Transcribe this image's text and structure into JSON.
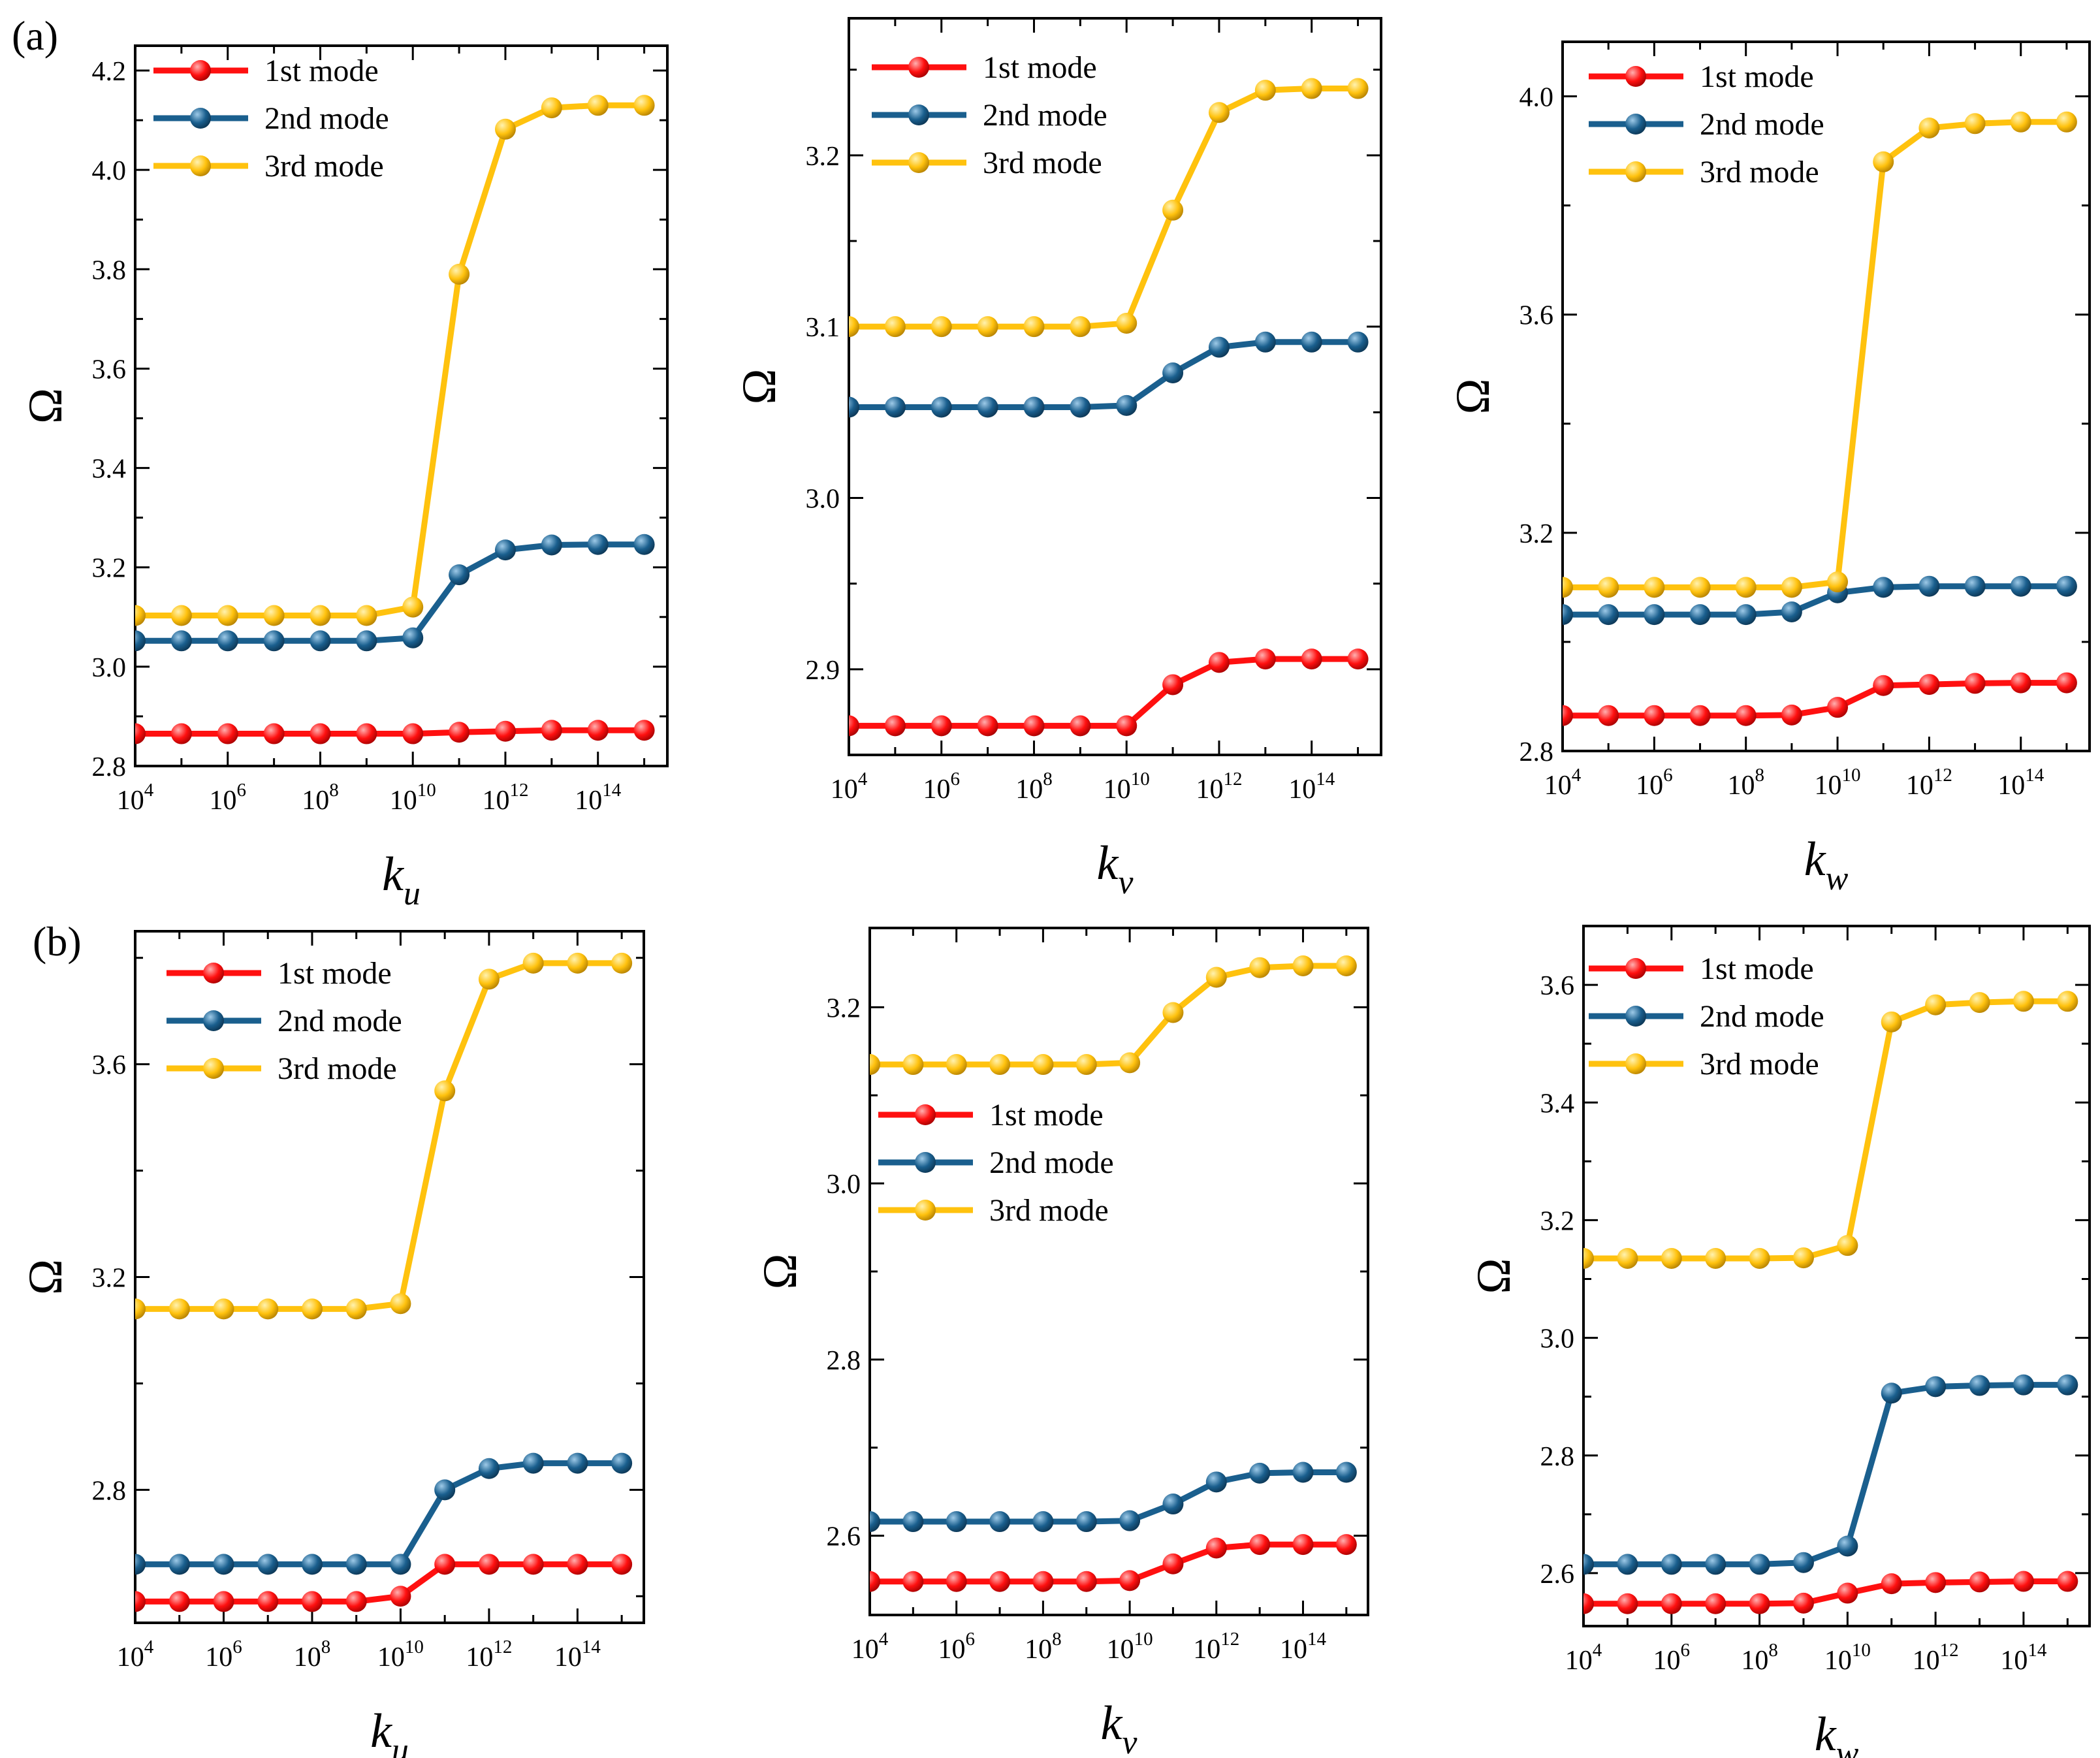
{
  "figure": {
    "row_labels": [
      "(a)",
      "(b)"
    ],
    "mode_colors": {
      "1st mode": "#ff1010",
      "2nd mode": "#1a5f8e",
      "3rd mode": "#ffc20e"
    }
  },
  "chart_data": [
    {
      "id": "a-ku",
      "type": "line",
      "row": "(a)",
      "xlabel": "k",
      "xlabel_sub": "u",
      "ylabel": "Ω",
      "x_exponents": [
        4,
        5,
        6,
        7,
        8,
        9,
        10,
        11,
        12,
        13,
        14,
        15
      ],
      "xtick_exponents": [
        4,
        6,
        8,
        10,
        12,
        14
      ],
      "xtick_base": "10",
      "ylim": [
        2.8,
        4.25
      ],
      "yticks": [
        "2.8",
        "3.0",
        "3.2",
        "3.4",
        "3.6",
        "3.8",
        "4.0",
        "4.2"
      ],
      "legend_position": "top-left",
      "series": [
        {
          "name": "1st mode",
          "values": [
            2.865,
            2.865,
            2.865,
            2.865,
            2.865,
            2.865,
            2.865,
            2.868,
            2.87,
            2.872,
            2.872,
            2.872
          ]
        },
        {
          "name": "2nd mode",
          "values": [
            3.052,
            3.052,
            3.052,
            3.052,
            3.052,
            3.052,
            3.058,
            3.185,
            3.235,
            3.245,
            3.246,
            3.246
          ]
        },
        {
          "name": "3rd mode",
          "values": [
            3.103,
            3.103,
            3.103,
            3.103,
            3.103,
            3.103,
            3.12,
            3.79,
            4.082,
            4.125,
            4.13,
            4.13
          ]
        }
      ]
    },
    {
      "id": "a-kv",
      "type": "line",
      "row": "(a)",
      "xlabel": "k",
      "xlabel_sub": "v",
      "ylabel": "Ω",
      "x_exponents": [
        4,
        5,
        6,
        7,
        8,
        9,
        10,
        11,
        12,
        13,
        14,
        15
      ],
      "xtick_exponents": [
        4,
        6,
        8,
        10,
        12,
        14
      ],
      "xtick_base": "10",
      "ylim": [
        2.85,
        3.28
      ],
      "yticks": [
        "2.9",
        "3.0",
        "3.1",
        "3.2"
      ],
      "legend_position": "top-left",
      "series": [
        {
          "name": "1st mode",
          "values": [
            2.867,
            2.867,
            2.867,
            2.867,
            2.867,
            2.867,
            2.867,
            2.891,
            2.904,
            2.906,
            2.906,
            2.906
          ]
        },
        {
          "name": "2nd mode",
          "values": [
            3.053,
            3.053,
            3.053,
            3.053,
            3.053,
            3.053,
            3.054,
            3.073,
            3.088,
            3.091,
            3.091,
            3.091
          ]
        },
        {
          "name": "3rd mode",
          "values": [
            3.1,
            3.1,
            3.1,
            3.1,
            3.1,
            3.1,
            3.102,
            3.168,
            3.225,
            3.238,
            3.239,
            3.239
          ]
        }
      ]
    },
    {
      "id": "a-kw",
      "type": "line",
      "row": "(a)",
      "xlabel": "k",
      "xlabel_sub": "w",
      "ylabel": "Ω",
      "x_exponents": [
        4,
        5,
        6,
        7,
        8,
        9,
        10,
        11,
        12,
        13,
        14,
        15
      ],
      "xtick_exponents": [
        4,
        6,
        8,
        10,
        12,
        14
      ],
      "xtick_base": "10",
      "ylim": [
        2.8,
        4.1
      ],
      "yticks": [
        "2.8",
        "3.2",
        "3.6",
        "4.0"
      ],
      "legend_position": "top-left",
      "series": [
        {
          "name": "1st mode",
          "values": [
            2.865,
            2.865,
            2.865,
            2.865,
            2.865,
            2.866,
            2.88,
            2.92,
            2.922,
            2.924,
            2.925,
            2.925
          ]
        },
        {
          "name": "2nd mode",
          "values": [
            3.05,
            3.05,
            3.05,
            3.05,
            3.05,
            3.055,
            3.09,
            3.1,
            3.102,
            3.102,
            3.102,
            3.102
          ]
        },
        {
          "name": "3rd mode",
          "values": [
            3.1,
            3.1,
            3.1,
            3.1,
            3.1,
            3.1,
            3.11,
            3.88,
            3.942,
            3.95,
            3.953,
            3.953
          ]
        }
      ]
    },
    {
      "id": "b-ku",
      "type": "line",
      "row": "(b)",
      "xlabel": "k",
      "xlabel_sub": "u",
      "ylabel": "Ω",
      "x_exponents": [
        4,
        5,
        6,
        7,
        8,
        9,
        10,
        11,
        12,
        13,
        14,
        15
      ],
      "xtick_exponents": [
        4,
        6,
        8,
        10,
        12,
        14
      ],
      "xtick_base": "10",
      "ylim": [
        2.55,
        3.85
      ],
      "yticks": [
        "2.8",
        "3.2",
        "3.6"
      ],
      "legend_position": "top-left",
      "series": [
        {
          "name": "1st mode",
          "values": [
            2.59,
            2.59,
            2.59,
            2.59,
            2.59,
            2.59,
            2.6,
            2.66,
            2.66,
            2.66,
            2.66,
            2.66
          ]
        },
        {
          "name": "2nd mode",
          "values": [
            2.66,
            2.66,
            2.66,
            2.66,
            2.66,
            2.66,
            2.66,
            2.8,
            2.84,
            2.85,
            2.85,
            2.85
          ]
        },
        {
          "name": "3rd mode",
          "values": [
            3.14,
            3.14,
            3.14,
            3.14,
            3.14,
            3.14,
            3.15,
            3.55,
            3.76,
            3.79,
            3.79,
            3.79
          ]
        }
      ]
    },
    {
      "id": "b-kv",
      "type": "line",
      "row": "(b)",
      "xlabel": "k",
      "xlabel_sub": "v",
      "ylabel": "Ω",
      "x_exponents": [
        4,
        5,
        6,
        7,
        8,
        9,
        10,
        11,
        12,
        13,
        14,
        15
      ],
      "xtick_exponents": [
        4,
        6,
        8,
        10,
        12,
        14
      ],
      "xtick_base": "10",
      "ylim": [
        2.51,
        3.29
      ],
      "yticks": [
        "2.6",
        "2.8",
        "3.0",
        "3.2"
      ],
      "legend_position": "center-left",
      "series": [
        {
          "name": "1st mode",
          "values": [
            2.548,
            2.548,
            2.548,
            2.548,
            2.548,
            2.548,
            2.549,
            2.568,
            2.586,
            2.59,
            2.59,
            2.59
          ]
        },
        {
          "name": "2nd mode",
          "values": [
            2.616,
            2.616,
            2.616,
            2.616,
            2.616,
            2.616,
            2.617,
            2.636,
            2.661,
            2.671,
            2.672,
            2.672
          ]
        },
        {
          "name": "3rd mode",
          "values": [
            3.135,
            3.135,
            3.135,
            3.135,
            3.135,
            3.135,
            3.137,
            3.194,
            3.234,
            3.245,
            3.247,
            3.247
          ]
        }
      ]
    },
    {
      "id": "b-kw",
      "type": "line",
      "row": "(b)",
      "xlabel": "k",
      "xlabel_sub": "w",
      "ylabel": "Ω",
      "x_exponents": [
        4,
        5,
        6,
        7,
        8,
        9,
        10,
        11,
        12,
        13,
        14,
        15
      ],
      "xtick_exponents": [
        4,
        6,
        8,
        10,
        12,
        14
      ],
      "xtick_base": "10",
      "ylim": [
        2.51,
        3.7
      ],
      "yticks": [
        "2.6",
        "2.8",
        "3.0",
        "3.2",
        "3.4",
        "3.6"
      ],
      "legend_position": "top-left",
      "series": [
        {
          "name": "1st mode",
          "values": [
            2.548,
            2.548,
            2.548,
            2.548,
            2.548,
            2.549,
            2.566,
            2.582,
            2.584,
            2.585,
            2.586,
            2.586
          ]
        },
        {
          "name": "2nd mode",
          "values": [
            2.615,
            2.615,
            2.615,
            2.615,
            2.615,
            2.618,
            2.646,
            2.906,
            2.917,
            2.919,
            2.92,
            2.92
          ]
        },
        {
          "name": "3rd mode",
          "values": [
            3.135,
            3.135,
            3.135,
            3.135,
            3.135,
            3.136,
            3.157,
            3.537,
            3.566,
            3.57,
            3.572,
            3.572
          ]
        }
      ]
    }
  ]
}
